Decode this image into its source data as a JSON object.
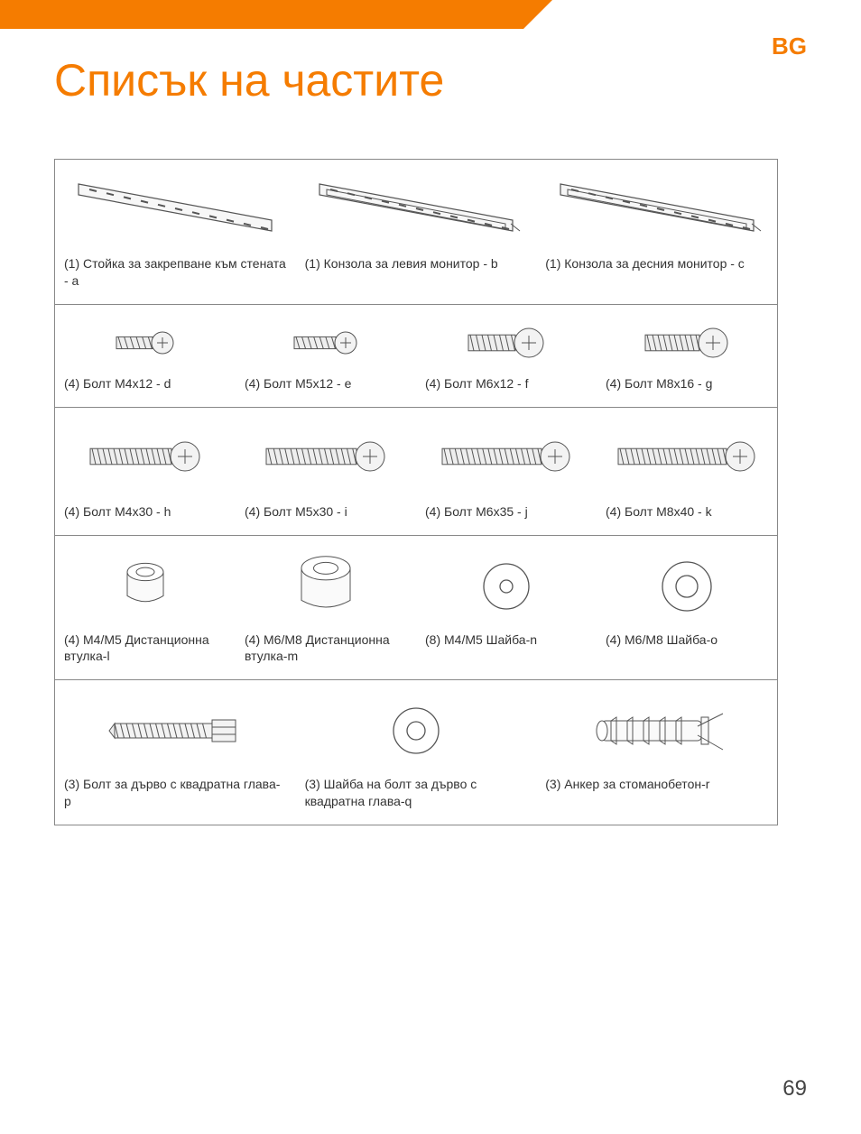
{
  "colors": {
    "accent": "#f57c00",
    "text": "#3a3a3a",
    "border": "#888"
  },
  "language_code": "BG",
  "page_title": "Списък на частите",
  "page_number": "69",
  "rows": [
    {
      "cols": 3,
      "items": [
        {
          "icon": "bracket-a",
          "label": "(1) Стойка за закрепване към стената - a"
        },
        {
          "icon": "bracket-b",
          "label": "(1) Конзола за левия монитор - b"
        },
        {
          "icon": "bracket-c",
          "label": "(1) Конзола за десния монитор - c"
        }
      ]
    },
    {
      "cols": 4,
      "items": [
        {
          "icon": "bolt-short",
          "size": 40,
          "label": "(4) Болт M4x12 - d"
        },
        {
          "icon": "bolt-short",
          "size": 46,
          "label": "(4) Болт M5x12 - e"
        },
        {
          "icon": "bolt-short",
          "size": 52,
          "label": "(4) Болт M6x12 - f"
        },
        {
          "icon": "bolt-short",
          "size": 60,
          "label": "(4) Болт M8x16 - g"
        }
      ]
    },
    {
      "cols": 4,
      "items": [
        {
          "icon": "bolt-long",
          "size": 90,
          "label": "(4) Болт M4x30 - h"
        },
        {
          "icon": "bolt-long",
          "size": 100,
          "label": "(4) Болт M5x30 - i"
        },
        {
          "icon": "bolt-long",
          "size": 110,
          "label": "(4) Болт M6x35 - j"
        },
        {
          "icon": "bolt-long",
          "size": 120,
          "label": "(4) Болт M8x40 - k"
        }
      ]
    },
    {
      "cols": 4,
      "items": [
        {
          "icon": "spacer",
          "size": 40,
          "label": "(4) M4/M5 Дистанционна втулка-l"
        },
        {
          "icon": "spacer",
          "size": 54,
          "label": "(4) M6/M8 Дистанционна втулка-m"
        },
        {
          "icon": "washer",
          "size": 50,
          "innerR": 7,
          "label": "(8) M4/M5 Шайба-n"
        },
        {
          "icon": "washer",
          "size": 54,
          "innerR": 12,
          "label": "(4) M6/M8 Шайба-o"
        }
      ]
    },
    {
      "cols": 3,
      "items": [
        {
          "icon": "lagbolt",
          "label": "(3) Болт за дърво с квадратна глава-p"
        },
        {
          "icon": "washer",
          "size": 50,
          "innerR": 10,
          "label": "(3) Шайба на болт за дърво с квадратна глава-q"
        },
        {
          "icon": "anchor",
          "label": "(3) Анкер за стоманобетон-r"
        }
      ]
    }
  ]
}
